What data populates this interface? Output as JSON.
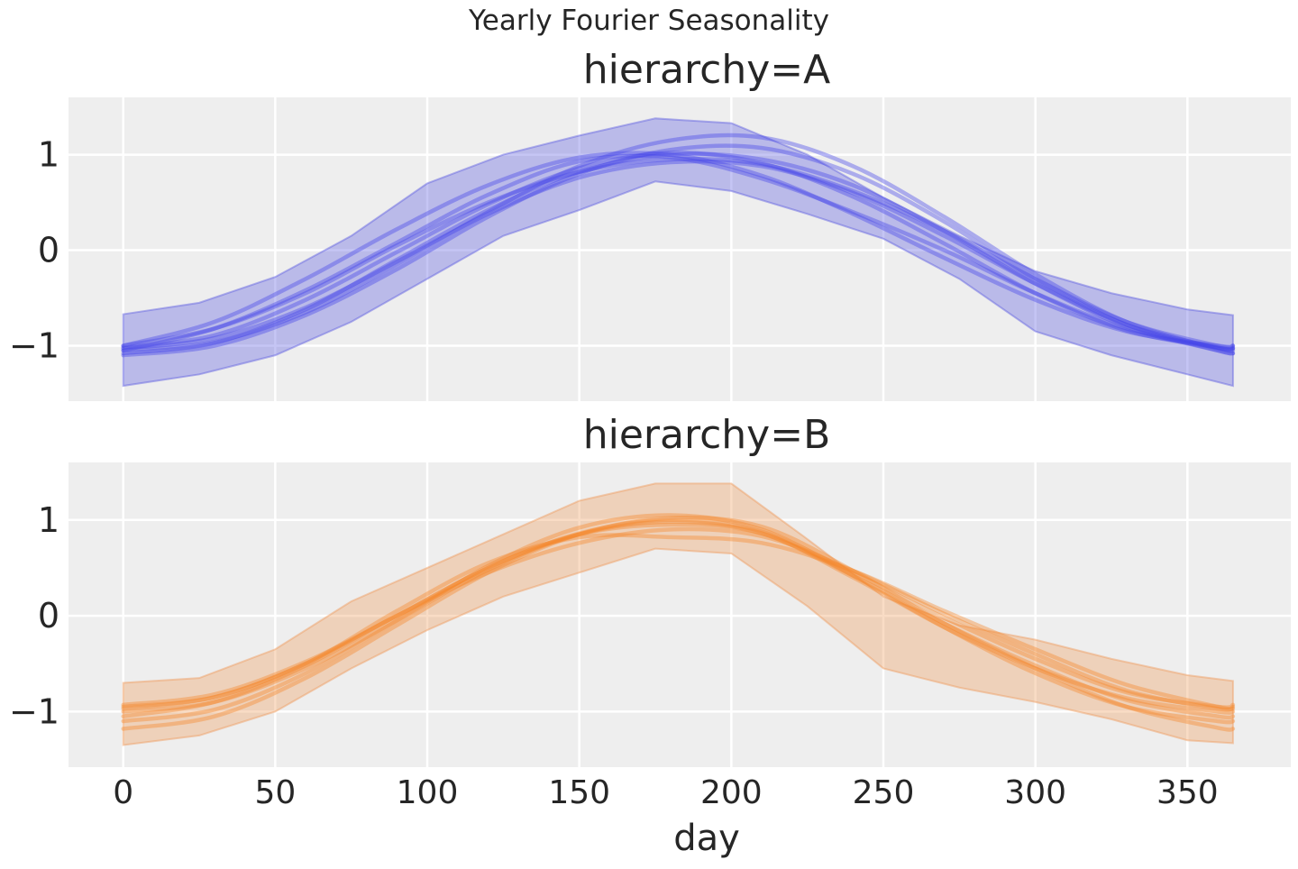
{
  "suptitle": "Yearly Fourier Seasonality",
  "chart_data": [
    {
      "type": "line",
      "title": "hierarchy=A",
      "xlabel": "",
      "ylabel": "",
      "xlim": [
        -18,
        384
      ],
      "ylim": [
        -1.58,
        1.6
      ],
      "xticks": [
        0,
        50,
        100,
        150,
        200,
        250,
        300,
        350
      ],
      "xtick_labels": [
        "0",
        "50",
        "100",
        "150",
        "200",
        "250",
        "300",
        "350"
      ],
      "show_xtick_labels": false,
      "yticks": [
        1,
        0,
        -1
      ],
      "ytick_labels": [
        "1",
        "0",
        "−1"
      ],
      "grid": true,
      "line_color": "#4646e8",
      "band_color": "#5a5adf",
      "band": {
        "x": [
          0,
          25,
          50,
          75,
          100,
          125,
          150,
          175,
          200,
          225,
          250,
          275,
          300,
          325,
          350,
          365
        ],
        "upper": [
          -0.67,
          -0.55,
          -0.28,
          0.15,
          0.7,
          1.0,
          1.2,
          1.38,
          1.33,
          1.0,
          0.55,
          0.15,
          -0.22,
          -0.45,
          -0.62,
          -0.68
        ],
        "lower": [
          -1.42,
          -1.3,
          -1.1,
          -0.75,
          -0.3,
          0.15,
          0.42,
          0.72,
          0.62,
          0.38,
          0.12,
          -0.3,
          -0.85,
          -1.1,
          -1.3,
          -1.42
        ]
      },
      "x": [
        0,
        30,
        60,
        90,
        120,
        150,
        180,
        210,
        240,
        270,
        300,
        330,
        360,
        365
      ],
      "series": [
        {
          "values": [
            -1.02,
            -0.89,
            -0.52,
            -0.02,
            0.48,
            0.86,
            1.02,
            0.91,
            0.56,
            0.07,
            -0.45,
            -0.84,
            -1.02,
            -1.02
          ]
        },
        {
          "values": [
            -1.0,
            -0.75,
            -0.3,
            0.22,
            0.68,
            0.97,
            1.0,
            0.78,
            0.38,
            -0.08,
            -0.52,
            -0.85,
            -1.0,
            -1.0
          ]
        },
        {
          "values": [
            -1.05,
            -0.96,
            -0.65,
            -0.15,
            0.4,
            0.88,
            1.15,
            1.18,
            0.88,
            0.35,
            -0.25,
            -0.75,
            -1.03,
            -1.05
          ]
        },
        {
          "values": [
            -1.05,
            -0.82,
            -0.42,
            0.08,
            0.58,
            0.93,
            0.97,
            0.75,
            0.4,
            0.0,
            -0.45,
            -0.82,
            -1.02,
            -1.03
          ]
        },
        {
          "values": [
            -1.1,
            -1.0,
            -0.68,
            -0.2,
            0.35,
            0.8,
            1.05,
            1.07,
            0.8,
            0.3,
            -0.3,
            -0.78,
            -1.05,
            -1.08
          ]
        },
        {
          "values": [
            -1.03,
            -0.92,
            -0.6,
            -0.12,
            0.38,
            0.76,
            0.92,
            0.88,
            0.6,
            0.15,
            -0.35,
            -0.78,
            -1.02,
            -1.03
          ]
        },
        {
          "values": [
            -1.0,
            -0.82,
            -0.45,
            0.05,
            0.5,
            0.82,
            0.95,
            0.9,
            0.62,
            0.2,
            -0.3,
            -0.75,
            -1.0,
            -1.0
          ]
        },
        {
          "values": [
            -1.08,
            -0.97,
            -0.62,
            -0.1,
            0.42,
            0.82,
            1.0,
            0.95,
            0.68,
            0.2,
            -0.35,
            -0.8,
            -1.05,
            -1.08
          ]
        }
      ]
    },
    {
      "type": "line",
      "title": "hierarchy=B",
      "xlabel": "day",
      "ylabel": "",
      "xlim": [
        -18,
        384
      ],
      "ylim": [
        -1.58,
        1.6
      ],
      "xticks": [
        0,
        50,
        100,
        150,
        200,
        250,
        300,
        350
      ],
      "xtick_labels": [
        "0",
        "50",
        "100",
        "150",
        "200",
        "250",
        "300",
        "350"
      ],
      "show_xtick_labels": true,
      "yticks": [
        1,
        0,
        -1
      ],
      "ytick_labels": [
        "1",
        "0",
        "−1"
      ],
      "grid": true,
      "line_color": "#f5872a",
      "band_color": "#ee9a5a",
      "band": {
        "x": [
          0,
          25,
          50,
          75,
          100,
          125,
          150,
          175,
          200,
          225,
          250,
          275,
          300,
          325,
          350,
          365
        ],
        "upper": [
          -0.7,
          -0.65,
          -0.35,
          0.15,
          0.5,
          0.85,
          1.2,
          1.38,
          1.38,
          0.8,
          0.2,
          -0.1,
          -0.25,
          -0.45,
          -0.62,
          -0.68
        ],
        "lower": [
          -1.35,
          -1.25,
          -1.0,
          -0.55,
          -0.15,
          0.2,
          0.45,
          0.7,
          0.65,
          0.1,
          -0.55,
          -0.75,
          -0.9,
          -1.08,
          -1.3,
          -1.33
        ]
      },
      "x": [
        0,
        30,
        60,
        90,
        120,
        150,
        180,
        210,
        240,
        270,
        300,
        330,
        360,
        365
      ],
      "series": [
        {
          "values": [
            -1.0,
            -0.9,
            -0.55,
            -0.05,
            0.48,
            0.85,
            0.98,
            0.86,
            0.4,
            -0.12,
            -0.55,
            -0.86,
            -1.0,
            -1.0
          ]
        },
        {
          "values": [
            -0.93,
            -0.82,
            -0.48,
            0.0,
            0.5,
            0.86,
            1.0,
            0.88,
            0.45,
            -0.02,
            -0.45,
            -0.8,
            -0.95,
            -0.93
          ]
        },
        {
          "values": [
            -1.18,
            -1.05,
            -0.65,
            -0.1,
            0.45,
            0.85,
            1.02,
            0.93,
            0.47,
            -0.08,
            -0.55,
            -0.95,
            -1.17,
            -1.18
          ]
        },
        {
          "values": [
            -1.1,
            -0.98,
            -0.6,
            -0.05,
            0.52,
            0.92,
            1.05,
            0.9,
            0.42,
            -0.12,
            -0.6,
            -0.95,
            -1.1,
            -1.1
          ]
        },
        {
          "values": [
            -0.97,
            -0.85,
            -0.5,
            0.05,
            0.55,
            0.82,
            0.82,
            0.76,
            0.47,
            0.05,
            -0.35,
            -0.72,
            -0.95,
            -0.97
          ]
        },
        {
          "values": [
            -1.05,
            -0.9,
            -0.52,
            0.0,
            0.5,
            0.85,
            0.95,
            0.86,
            0.42,
            -0.08,
            -0.52,
            -0.88,
            -1.05,
            -1.05
          ]
        },
        {
          "values": [
            -0.95,
            -0.85,
            -0.5,
            0.0,
            0.45,
            0.76,
            0.9,
            0.83,
            0.47,
            0.02,
            -0.4,
            -0.78,
            -0.97,
            -0.95
          ]
        }
      ]
    }
  ]
}
